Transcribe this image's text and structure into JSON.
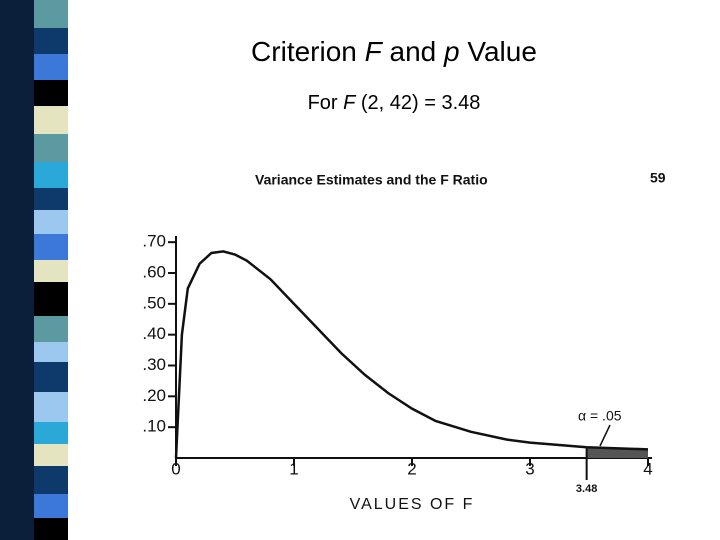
{
  "slide": {
    "title_parts": [
      "Criterion ",
      "F",
      " and ",
      "p",
      " Value"
    ],
    "subtitle_parts": [
      "For ",
      "F",
      " (2, 42) = 3.48"
    ]
  },
  "chart_data": {
    "type": "line",
    "title": "Variance Estimates and the F Ratio",
    "page_number": "59",
    "x_label": "VALUES OF F",
    "x": [
      0,
      0.05,
      0.1,
      0.2,
      0.3,
      0.4,
      0.5,
      0.6,
      0.8,
      1.0,
      1.2,
      1.4,
      1.6,
      1.8,
      2.0,
      2.2,
      2.5,
      2.8,
      3.0,
      3.48,
      4.0
    ],
    "series": [
      {
        "color": "#111111",
        "values": [
          0,
          0.4,
          0.55,
          0.63,
          0.665,
          0.67,
          0.66,
          0.64,
          0.58,
          0.5,
          0.42,
          0.34,
          0.27,
          0.21,
          0.16,
          0.12,
          0.085,
          0.06,
          0.05,
          0.035,
          0.028
        ]
      }
    ],
    "xlim": [
      0,
      4
    ],
    "ylim": [
      0,
      0.72
    ],
    "xticks": [
      0,
      1,
      2,
      3,
      4
    ],
    "yticks": [
      {
        "value": 0.1,
        "label": ".10"
      },
      {
        "value": 0.2,
        "label": ".20"
      },
      {
        "value": 0.3,
        "label": ".30"
      },
      {
        "value": 0.4,
        "label": ".40"
      },
      {
        "value": 0.5,
        "label": ".50"
      },
      {
        "value": 0.6,
        "label": ".60"
      },
      {
        "value": 0.7,
        "label": ".70"
      }
    ],
    "critical_value": {
      "value": 3.48,
      "label": "3.48"
    },
    "alpha_label": "α = .05"
  }
}
